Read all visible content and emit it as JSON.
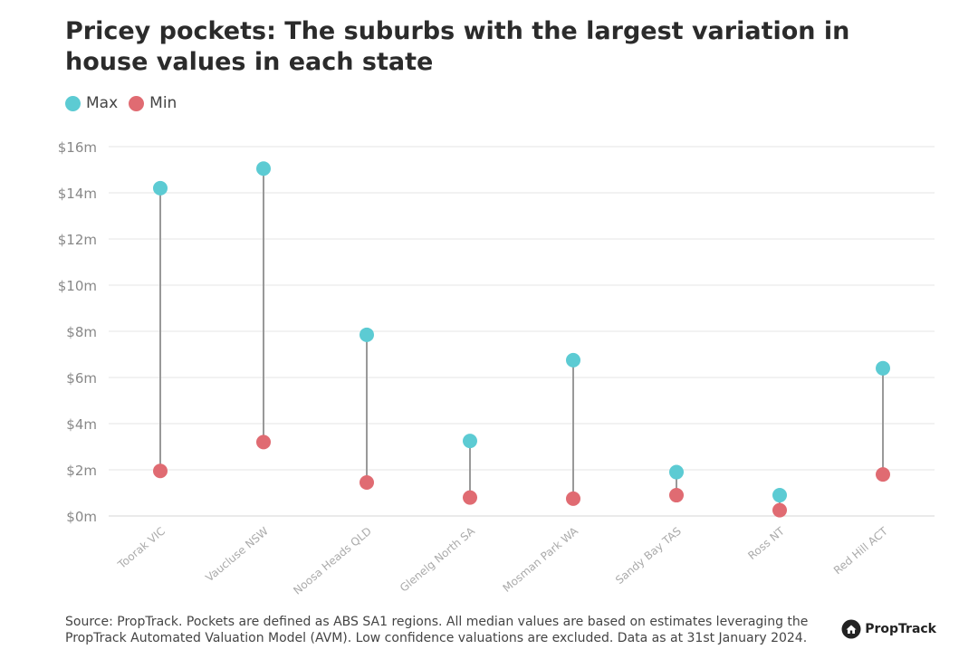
{
  "title": "Pricey pockets: The suburbs with the largest variation in house values in each state",
  "legend": [
    {
      "label": "Max",
      "color": "#5ccbd3"
    },
    {
      "label": "Min",
      "color": "#e06b72"
    }
  ],
  "source": "Source: PropTrack. Pockets are defined as ABS SA1 regions. All median values are based on estimates leveraging the PropTrack Automated Valuation Model (AVM). Low confidence valuations are excluded. Data as at 31st January 2024.",
  "brand": {
    "name": "PropTrack",
    "icon": "house-logo-icon"
  },
  "chart_data": {
    "type": "dumbbell",
    "categories": [
      "Toorak VIC",
      "Vaucluse NSW",
      "Noosa Heads QLD",
      "Glenelg North SA",
      "Mosman Park WA",
      "Sandy Bay TAS",
      "Ross NT",
      "Red Hill ACT"
    ],
    "series": [
      {
        "name": "Max",
        "color": "#5ccbd3",
        "values": [
          14.2,
          15.05,
          7.85,
          3.25,
          6.75,
          1.9,
          0.9,
          6.4
        ]
      },
      {
        "name": "Min",
        "color": "#e06b72",
        "values": [
          1.95,
          3.2,
          1.45,
          0.8,
          0.75,
          0.9,
          0.25,
          1.8
        ]
      }
    ],
    "y_ticks": [
      "$0m",
      "$2m",
      "$4m",
      "$6m",
      "$8m",
      "$10m",
      "$12m",
      "$14m",
      "$16m"
    ],
    "ylim": [
      0,
      16
    ],
    "grid": true,
    "connector_color": "#999999",
    "legend_position": "top-left"
  }
}
